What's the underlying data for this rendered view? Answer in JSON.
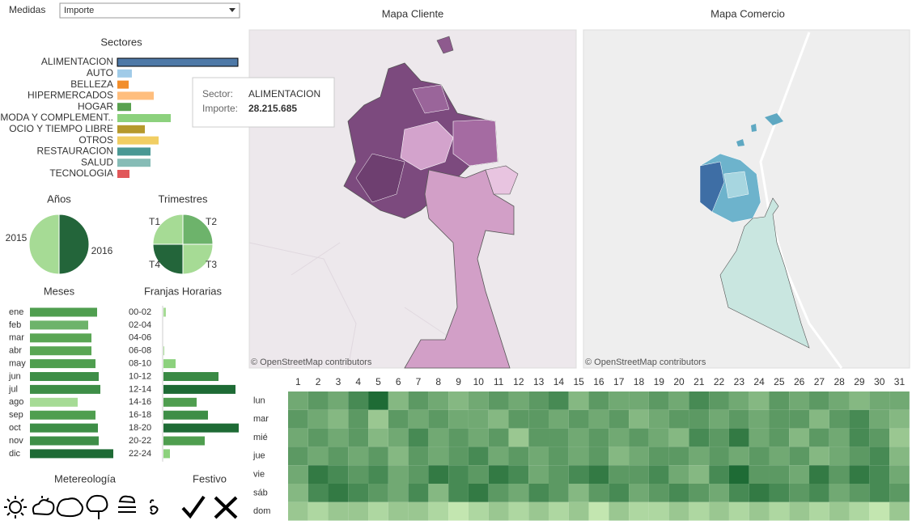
{
  "controls": {
    "label": "Medidas",
    "selected": "Importe"
  },
  "tooltip": {
    "sector_label": "Sector:",
    "sector": "ALIMENTACION",
    "value_label": "Importe:",
    "value": "28.215.685"
  },
  "maps": [
    {
      "title": "Mapa Cliente",
      "attribution": "© OpenStreetMap contributors"
    },
    {
      "title": "Mapa Comercio",
      "attribution": "© OpenStreetMap contributors"
    }
  ],
  "filters": {
    "weather_title": "Metereología",
    "holiday_title": "Festivo"
  },
  "chart_data": [
    {
      "type": "hbar",
      "title": "Sectores",
      "categories": [
        "ALIMENTACION",
        "AUTO",
        "BELLEZA",
        "HIPERMERCADOS",
        "HOGAR",
        "MODA Y COMPLEMENT..",
        "OCIO Y TIEMPO LIBRE",
        "OTROS",
        "RESTAURACION",
        "SALUD",
        "TECNOLOGIA"
      ],
      "values": [
        28215685,
        3400000,
        2650000,
        8520000,
        3220000,
        12500000,
        6440000,
        9660000,
        7760000,
        7760000,
        2840000
      ],
      "colors": [
        "#4e79a7",
        "#a0cbe8",
        "#f28e2b",
        "#ffbe7d",
        "#59a14f",
        "#8cd17d",
        "#b6992d",
        "#f1ce63",
        "#499894",
        "#86bcb6",
        "#e15759"
      ]
    },
    {
      "type": "pie",
      "title": "Años",
      "categories": [
        "2015",
        "2016"
      ],
      "values": [
        50,
        50
      ],
      "colors": [
        "#a6db95",
        "#23653a"
      ]
    },
    {
      "type": "pie",
      "title": "Trimestres",
      "categories": [
        "T1",
        "T2",
        "T3",
        "T4"
      ],
      "values": [
        25,
        25,
        25,
        25
      ],
      "colors": [
        "#a6db95",
        "#6db36b",
        "#a6db95",
        "#23653a"
      ]
    },
    {
      "type": "hbar",
      "title": "Meses",
      "categories": [
        "ene",
        "feb",
        "mar",
        "abr",
        "may",
        "jun",
        "jul",
        "ago",
        "sep",
        "oct",
        "nov",
        "dic"
      ],
      "values": [
        83,
        72,
        76,
        76,
        81,
        85,
        87,
        59,
        81,
        84,
        85,
        103
      ],
      "colors": [
        "#4f9e4f",
        "#6db36b",
        "#5aa654",
        "#5aa654",
        "#4f9e4f",
        "#3e8e47",
        "#3e8e47",
        "#a6db95",
        "#4f9e4f",
        "#3e8e47",
        "#3e8e47",
        "#1e6b35"
      ]
    },
    {
      "type": "hbar",
      "title": "Franjas Horarias",
      "categories": [
        "00-02",
        "02-04",
        "04-06",
        "06-08",
        "08-10",
        "10-12",
        "12-14",
        "14-16",
        "16-18",
        "18-20",
        "20-22",
        "22-24"
      ],
      "values": [
        3,
        0,
        0,
        1,
        15,
        68,
        89,
        41,
        55,
        93,
        51,
        8
      ],
      "colors": [
        "#a6db95",
        "#a6db95",
        "#a6db95",
        "#a6db95",
        "#8cd17d",
        "#3a8a45",
        "#1e6b35",
        "#4f9e4f",
        "#3e8e47",
        "#1e6b35",
        "#4f9e4f",
        "#8cd17d"
      ]
    },
    {
      "type": "heatmap",
      "x": [
        1,
        2,
        3,
        4,
        5,
        6,
        7,
        8,
        9,
        10,
        11,
        12,
        13,
        14,
        15,
        16,
        17,
        18,
        19,
        20,
        21,
        22,
        23,
        24,
        25,
        26,
        27,
        28,
        29,
        30,
        31
      ],
      "categories": [
        "lun",
        "mar",
        "mié",
        "jue",
        "vie",
        "sáb",
        "dom"
      ],
      "color_range": [
        "#c3e6b0",
        "#1e6b35"
      ],
      "values": [
        [
          5,
          6,
          5,
          7,
          9,
          4,
          6,
          5,
          4,
          5,
          6,
          5,
          6,
          7,
          4,
          6,
          5,
          5,
          6,
          5,
          7,
          6,
          5,
          4,
          6,
          5,
          6,
          5,
          4,
          5,
          5
        ],
        [
          6,
          5,
          4,
          6,
          3,
          6,
          5,
          6,
          5,
          5,
          4,
          6,
          6,
          5,
          6,
          5,
          6,
          4,
          5,
          6,
          6,
          5,
          6,
          5,
          6,
          6,
          4,
          6,
          7,
          5,
          4
        ],
        [
          5,
          6,
          5,
          6,
          4,
          5,
          7,
          5,
          6,
          5,
          6,
          3,
          6,
          6,
          5,
          6,
          5,
          6,
          5,
          4,
          7,
          6,
          8,
          5,
          6,
          4,
          6,
          5,
          7,
          6,
          3
        ],
        [
          6,
          5,
          6,
          5,
          6,
          4,
          6,
          5,
          6,
          7,
          5,
          6,
          5,
          6,
          5,
          6,
          4,
          5,
          6,
          6,
          5,
          6,
          5,
          6,
          5,
          6,
          4,
          5,
          6,
          7,
          4
        ],
        [
          5,
          8,
          7,
          6,
          7,
          5,
          6,
          8,
          7,
          6,
          8,
          7,
          5,
          6,
          7,
          8,
          6,
          6,
          7,
          5,
          4,
          7,
          9,
          6,
          6,
          5,
          8,
          6,
          8,
          7,
          5
        ],
        [
          4,
          7,
          8,
          7,
          6,
          5,
          7,
          4,
          7,
          8,
          6,
          5,
          7,
          6,
          4,
          6,
          7,
          5,
          6,
          7,
          6,
          5,
          7,
          8,
          7,
          6,
          7,
          5,
          6,
          7,
          6
        ],
        [
          3,
          2,
          3,
          3,
          2,
          3,
          3,
          2,
          1,
          2,
          3,
          2,
          3,
          2,
          3,
          1,
          3,
          2,
          2,
          3,
          2,
          3,
          2,
          3,
          2,
          3,
          2,
          3,
          2,
          1,
          3
        ]
      ]
    }
  ]
}
